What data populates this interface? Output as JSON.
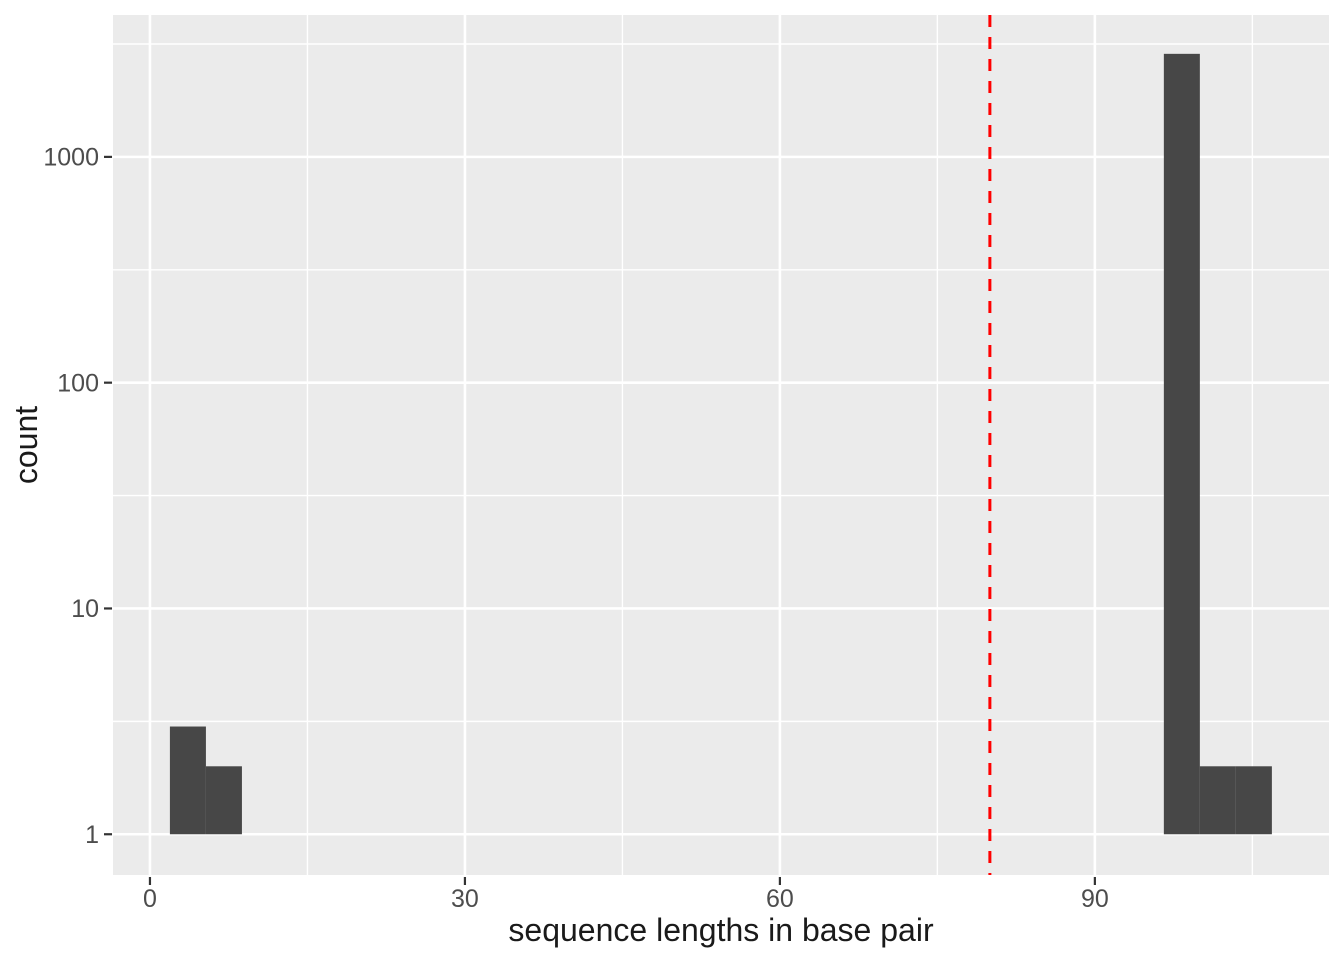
{
  "chart_data": {
    "type": "bar",
    "subtype": "histogram",
    "title": "",
    "xlabel": "sequence lengths in base pair",
    "ylabel": "count",
    "x_scale": "linear",
    "y_scale": "log10",
    "xlim": [
      -3.52,
      112.3
    ],
    "ylim": [
      0.66,
      4250
    ],
    "x_ticks": [
      0,
      30,
      60,
      90
    ],
    "x_tick_labels": [
      "0",
      "30",
      "60",
      "90"
    ],
    "x_minor_ticks": [
      15,
      45,
      75,
      105
    ],
    "y_ticks": [
      1,
      10,
      100,
      1000
    ],
    "y_tick_labels": [
      "1",
      "10",
      "100",
      "1000"
    ],
    "y_minor_ticks": [
      3.162,
      31.62,
      316.2,
      3162
    ],
    "grid": true,
    "legend": false,
    "bars": [
      {
        "x0": 1.9,
        "x1": 5.33,
        "count": 3
      },
      {
        "x0": 5.33,
        "x1": 8.76,
        "count": 2
      },
      {
        "x0": 96.57,
        "x1": 100.0,
        "count": 2860
      },
      {
        "x0": 100.0,
        "x1": 103.43,
        "count": 2
      },
      {
        "x0": 103.43,
        "x1": 106.86,
        "count": 2
      }
    ],
    "bar_baseline": 1,
    "vline": {
      "x": 80,
      "color": "#FF0000",
      "style": "dashed"
    },
    "colors": {
      "bar": "#474747",
      "panel_bg": "#EBEBEB",
      "grid": "#FFFFFF",
      "axis_text": "#4D4D4D",
      "axis_title": "#1A1A1A",
      "tick_mark": "#333333",
      "background": "#FFFFFF"
    }
  }
}
